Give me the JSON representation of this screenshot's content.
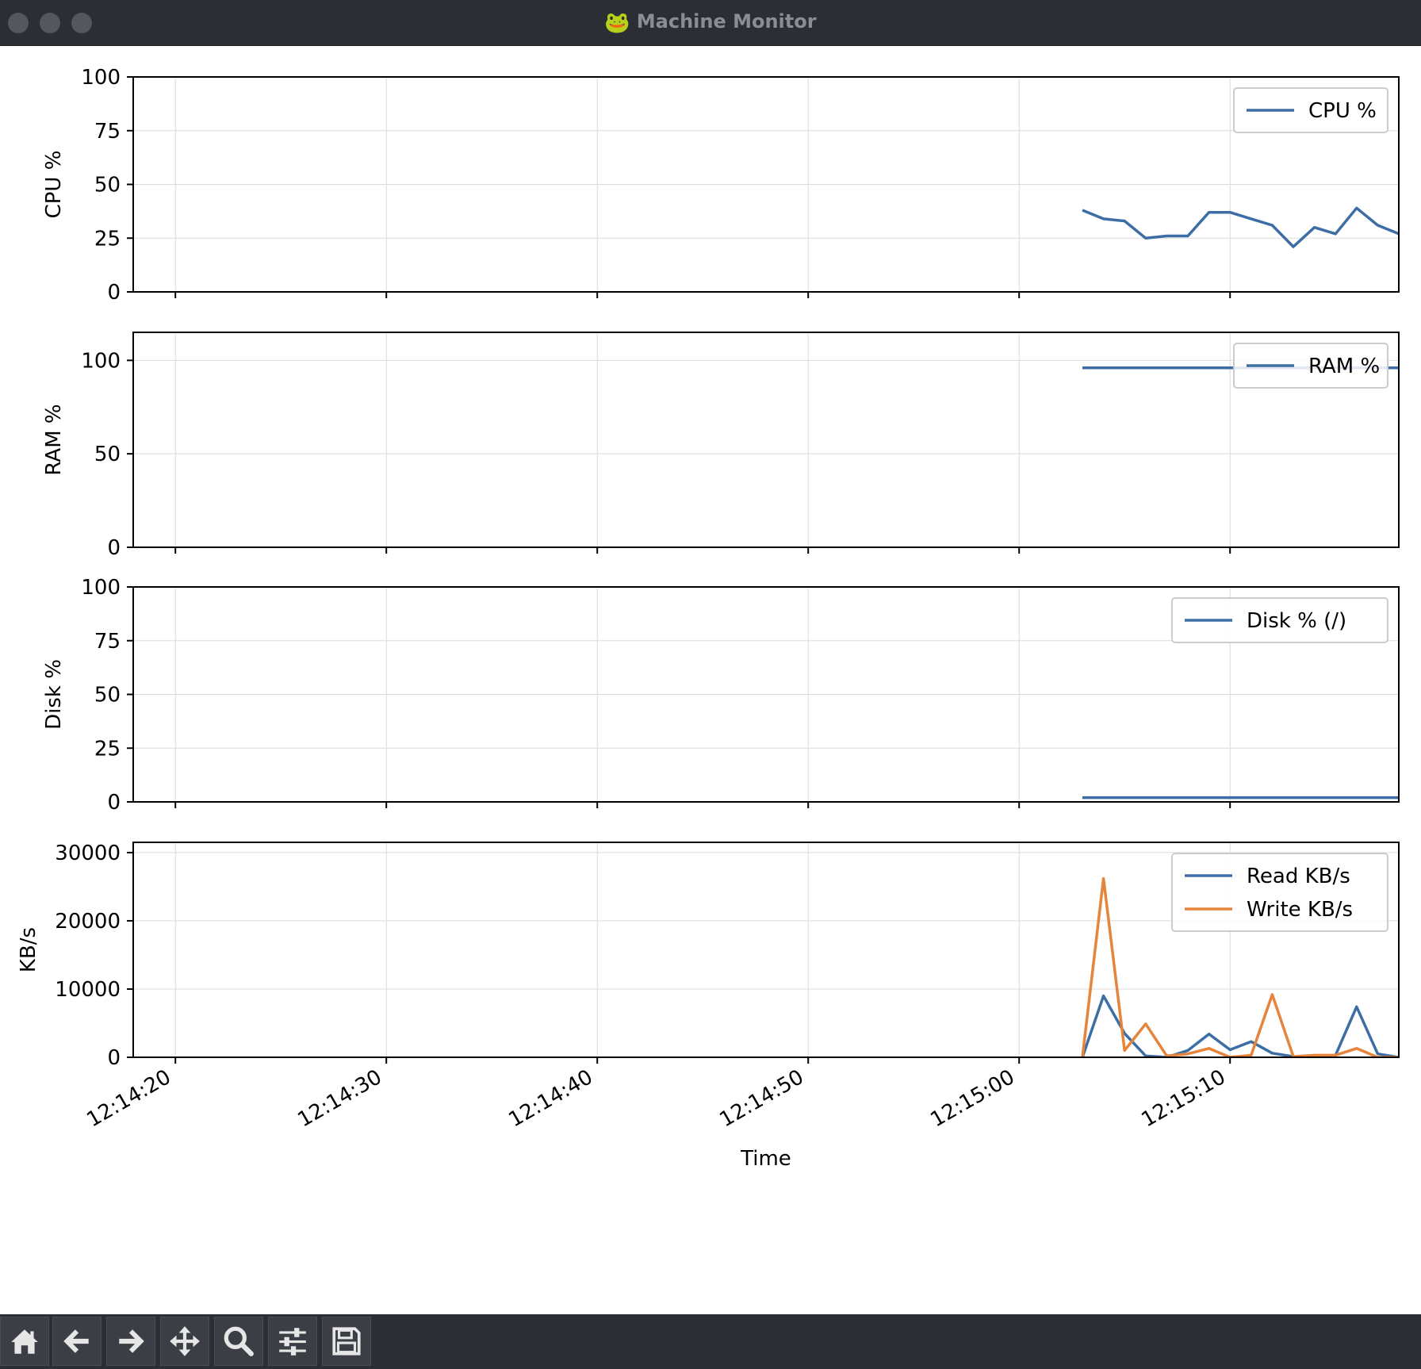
{
  "window": {
    "title": "Machine Monitor",
    "title_icon": "frog-icon"
  },
  "colors": {
    "series_blue": "#3c6ea5",
    "series_orange": "#e5843a",
    "grid": "#dcdcdc",
    "axis": "#000000"
  },
  "x_ticks": [
    "12:14:20",
    "12:14:30",
    "12:14:40",
    "12:14:50",
    "12:15:00",
    "12:15:10"
  ],
  "x_label": "Time",
  "chart_data": [
    {
      "type": "line",
      "ylabel": "CPU %",
      "ylim": [
        0,
        100
      ],
      "yticks": [
        "0",
        "25",
        "50",
        "75",
        "100"
      ],
      "xlim": [
        "12:14:18",
        "12:15:18"
      ],
      "grid": true,
      "legend_position": "upper-right",
      "series": [
        {
          "name": "CPU %",
          "color": "#3c6ea5",
          "x": [
            "12:15:03",
            "12:15:04",
            "12:15:05",
            "12:15:06",
            "12:15:07",
            "12:15:08",
            "12:15:09",
            "12:15:10",
            "12:15:11",
            "12:15:12",
            "12:15:13",
            "12:15:14",
            "12:15:15",
            "12:15:16",
            "12:15:17",
            "12:15:18"
          ],
          "values": [
            38,
            34,
            33,
            25,
            26,
            26,
            37,
            37,
            34,
            31,
            21,
            30,
            27,
            39,
            31,
            27
          ]
        }
      ]
    },
    {
      "type": "line",
      "ylabel": "RAM %",
      "ylim": [
        0,
        115
      ],
      "yticks": [
        "0",
        "50",
        "100"
      ],
      "xlim": [
        "12:14:18",
        "12:15:18"
      ],
      "grid": true,
      "legend_position": "upper-right",
      "series": [
        {
          "name": "RAM %",
          "color": "#3c6ea5",
          "x": [
            "12:15:03",
            "12:15:04",
            "12:15:05",
            "12:15:06",
            "12:15:07",
            "12:15:08",
            "12:15:09",
            "12:15:10",
            "12:15:11",
            "12:15:12",
            "12:15:13",
            "12:15:14",
            "12:15:15",
            "12:15:16",
            "12:15:17",
            "12:15:18"
          ],
          "values": [
            96,
            96,
            96,
            96,
            96,
            96,
            96,
            96,
            96,
            96,
            96,
            96,
            96,
            96,
            96,
            96
          ]
        }
      ]
    },
    {
      "type": "line",
      "ylabel": "Disk %",
      "ylim": [
        0,
        100
      ],
      "yticks": [
        "0",
        "25",
        "50",
        "75",
        "100"
      ],
      "xlim": [
        "12:14:18",
        "12:15:18"
      ],
      "grid": true,
      "legend_position": "upper-right",
      "series": [
        {
          "name": "Disk % (/)",
          "color": "#3c6ea5",
          "x": [
            "12:15:03",
            "12:15:04",
            "12:15:05",
            "12:15:06",
            "12:15:07",
            "12:15:08",
            "12:15:09",
            "12:15:10",
            "12:15:11",
            "12:15:12",
            "12:15:13",
            "12:15:14",
            "12:15:15",
            "12:15:16",
            "12:15:17",
            "12:15:18"
          ],
          "values": [
            2,
            2,
            2,
            2,
            2,
            2,
            2,
            2,
            2,
            2,
            2,
            2,
            2,
            2,
            2,
            2
          ]
        }
      ]
    },
    {
      "type": "line",
      "ylabel": "KB/s",
      "xlabel": "Time",
      "ylim": [
        0,
        31500
      ],
      "yticks": [
        "0",
        "10000",
        "20000",
        "30000"
      ],
      "xlim": [
        "12:14:18",
        "12:15:18"
      ],
      "grid": true,
      "legend_position": "upper-right",
      "series": [
        {
          "name": "Read KB/s",
          "color": "#3c6ea5",
          "x": [
            "12:15:03",
            "12:15:04",
            "12:15:05",
            "12:15:06",
            "12:15:07",
            "12:15:08",
            "12:15:09",
            "12:15:10",
            "12:15:11",
            "12:15:12",
            "12:15:13",
            "12:15:14",
            "12:15:15",
            "12:15:16",
            "12:15:17",
            "12:15:18"
          ],
          "values": [
            0,
            9000,
            3500,
            200,
            0,
            1000,
            3400,
            1100,
            2300,
            600,
            100,
            0,
            300,
            7400,
            500,
            0
          ]
        },
        {
          "name": "Write KB/s",
          "color": "#e5843a",
          "x": [
            "12:15:03",
            "12:15:04",
            "12:15:05",
            "12:15:06",
            "12:15:07",
            "12:15:08",
            "12:15:09",
            "12:15:10",
            "12:15:11",
            "12:15:12",
            "12:15:13",
            "12:15:14",
            "12:15:15",
            "12:15:16",
            "12:15:17",
            "12:15:18"
          ],
          "values": [
            0,
            26200,
            1000,
            4900,
            200,
            500,
            1300,
            0,
            300,
            9200,
            100,
            300,
            300,
            1300,
            0,
            0
          ]
        }
      ]
    }
  ],
  "toolbar": {
    "buttons": [
      {
        "name": "home-button",
        "icon": "home-icon"
      },
      {
        "name": "back-button",
        "icon": "arrow-left-icon"
      },
      {
        "name": "forward-button",
        "icon": "arrow-right-icon"
      },
      {
        "name": "pan-button",
        "icon": "move-icon"
      },
      {
        "name": "zoom-button",
        "icon": "magnifier-icon"
      },
      {
        "name": "configure-subplots-button",
        "icon": "sliders-icon"
      },
      {
        "name": "save-button",
        "icon": "floppy-disk-icon"
      }
    ]
  }
}
